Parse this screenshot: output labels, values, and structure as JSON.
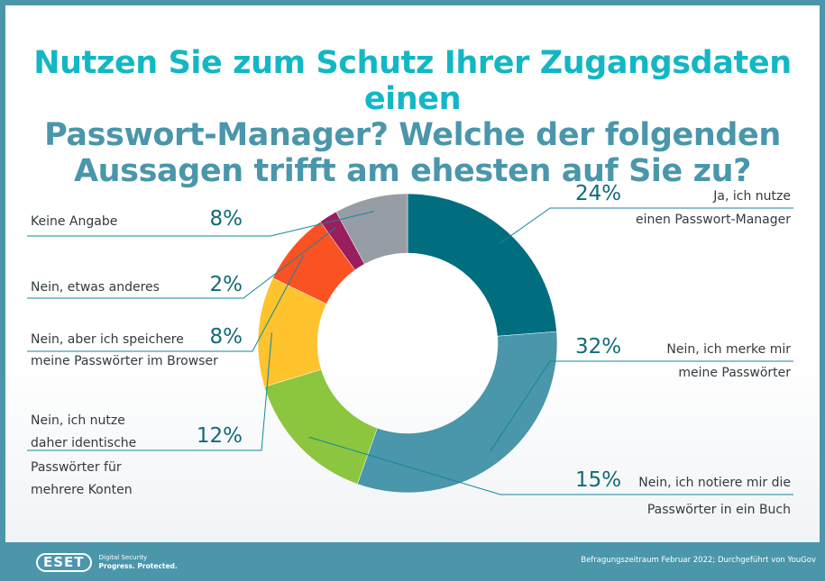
{
  "title_lines": [
    "Nutzen Sie zum Schutz Ihrer Zugangsdaten einen",
    "Passwort-Manager? Welche der folgenden",
    "Aussagen trifft am ehesten auf Sie zu?"
  ],
  "footer": {
    "logo": "ESET",
    "tagline_1": "Digital Security",
    "tagline_2": "Progress. Protected.",
    "source": "Befragungszeitraum Februar 2022; Durchgeführt von YouGov"
  },
  "chart_data": {
    "type": "pie",
    "variant": "donut",
    "title": "Nutzen Sie zum Schutz Ihrer Zugangsdaten einen Passwort-Manager? Welche der folgenden Aussagen trifft am ehesten auf Sie zu?",
    "slices": [
      {
        "label_lines": [
          "Ja, ich nutze",
          "einen Passwort-Manager"
        ],
        "value": 24,
        "display": "24%",
        "color": "#006e7f"
      },
      {
        "label_lines": [
          "Nein, ich merke mir",
          "meine Passwörter"
        ],
        "value": 32,
        "display": "32%",
        "color": "#4a96ab"
      },
      {
        "label_lines": [
          "Nein, ich notiere mir die",
          "Passwörter in ein Buch"
        ],
        "value": 15,
        "display": "15%",
        "color": "#8cc63f"
      },
      {
        "label_lines": [
          "Nein, ich nutze",
          "daher identische",
          "Passwörter für",
          "mehrere Konten"
        ],
        "value": 12,
        "display": "12%",
        "color": "#fec32d"
      },
      {
        "label_lines": [
          "Nein, aber ich speichere",
          "meine Passwörter im Browser"
        ],
        "value": 8,
        "display": "8%",
        "color": "#fb5224"
      },
      {
        "label_lines": [
          "Nein, etwas anderes"
        ],
        "value": 2,
        "display": "2%",
        "color": "#9a1d5e"
      },
      {
        "label_lines": [
          "Keine Angabe"
        ],
        "value": 8,
        "display": "8%",
        "color": "#969da4"
      }
    ]
  }
}
